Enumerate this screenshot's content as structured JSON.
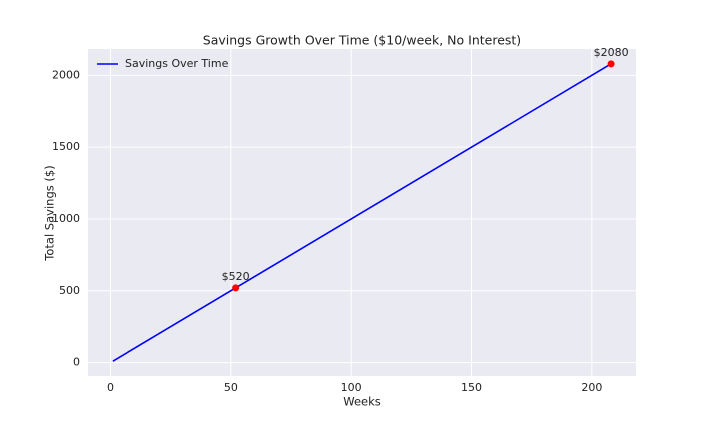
{
  "chart_data": {
    "type": "line",
    "title": "Savings Growth Over Time ($10/week, No Interest)",
    "x_label": "Weeks",
    "y_label": "Total Savings ($)",
    "x": [
      1,
      208
    ],
    "series": [
      {
        "name": "Savings Over Time",
        "color": "#0000ff",
        "values": [
          10,
          2080
        ]
      }
    ],
    "annotations": [
      {
        "x": 52,
        "y": 520,
        "label": "$520",
        "color": "#ff0000"
      },
      {
        "x": 208,
        "y": 2080,
        "label": "$2080",
        "color": "#ff0000"
      }
    ],
    "xlim": [
      -9.35,
      218.35
    ],
    "xticks": [
      0,
      50,
      100,
      150,
      200
    ],
    "ylim": [
      -93.5,
      2183.5
    ],
    "yticks": [
      0,
      500,
      1000,
      1500,
      2000
    ],
    "grid": true,
    "legend": "upper-left"
  }
}
